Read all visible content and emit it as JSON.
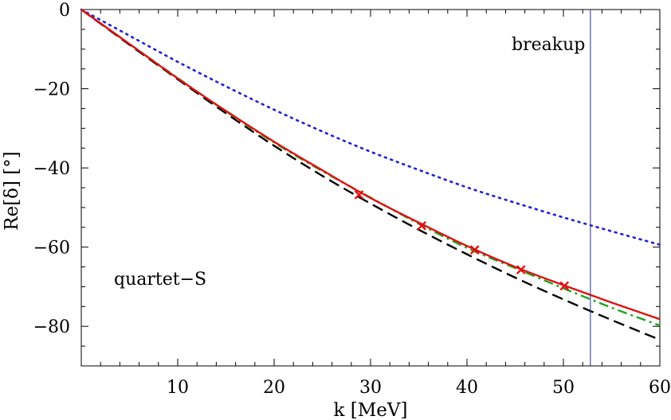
{
  "chart_data": {
    "type": "line",
    "title": "",
    "xlabel": "k [MeV]",
    "ylabel": "Re[δ] [°]",
    "xlim": [
      0,
      60
    ],
    "ylim": [
      -90,
      0
    ],
    "xticks": [
      10,
      20,
      30,
      40,
      50,
      60
    ],
    "yticks": [
      0,
      -20,
      -40,
      -60,
      -80
    ],
    "grid": false,
    "annotations": {
      "region_label": "quartet−S",
      "breakup_label": "breakup",
      "breakup_k": 52.8
    },
    "series": [
      {
        "name": "blue-dotted",
        "color": "#1f1fd6",
        "style": "dotted",
        "x": [
          0,
          5,
          10,
          15,
          20,
          25,
          30,
          35,
          40,
          45,
          50,
          55,
          60
        ],
        "y": [
          0,
          -6.6,
          -13.2,
          -19.4,
          -25.3,
          -30.8,
          -35.9,
          -40.5,
          -44.9,
          -48.8,
          -52.5,
          -56.0,
          -59.4
        ]
      },
      {
        "name": "black-dashed",
        "color": "#000000",
        "style": "dashed",
        "x": [
          0,
          5,
          10,
          15,
          20,
          25,
          30,
          35,
          40,
          45,
          50,
          55,
          60
        ],
        "y": [
          0,
          -8.9,
          -17.6,
          -26.2,
          -34.4,
          -42.0,
          -49.0,
          -55.6,
          -61.8,
          -67.7,
          -73.2,
          -78.4,
          -83.4
        ]
      },
      {
        "name": "green-dashdot",
        "color": "#1aa51a",
        "style": "dashdot",
        "x": [
          0,
          5,
          10,
          15,
          20,
          25,
          30,
          35,
          40,
          45,
          50,
          55,
          60
        ],
        "y": [
          0,
          -8.7,
          -17.3,
          -25.7,
          -33.6,
          -40.8,
          -47.5,
          -54.1,
          -60.2,
          -65.3,
          -70.4,
          -75.3,
          -79.8
        ]
      },
      {
        "name": "red-solid",
        "color": "#e01010",
        "style": "solid",
        "x": [
          0,
          5,
          10,
          15,
          20,
          25,
          30,
          35,
          40,
          45,
          50,
          55,
          60
        ],
        "y": [
          0,
          -8.7,
          -17.4,
          -25.6,
          -33.4,
          -40.6,
          -47.6,
          -53.8,
          -59.7,
          -65.0,
          -69.6,
          -74.0,
          -78.2
        ]
      }
    ],
    "markers": {
      "name": "data-points",
      "color": "#e01010",
      "symbol": "x",
      "x": [
        28.8,
        35.3,
        40.8,
        45.6,
        50.1
      ],
      "y": [
        -46.8,
        -54.6,
        -60.7,
        -65.7,
        -69.8
      ]
    }
  }
}
